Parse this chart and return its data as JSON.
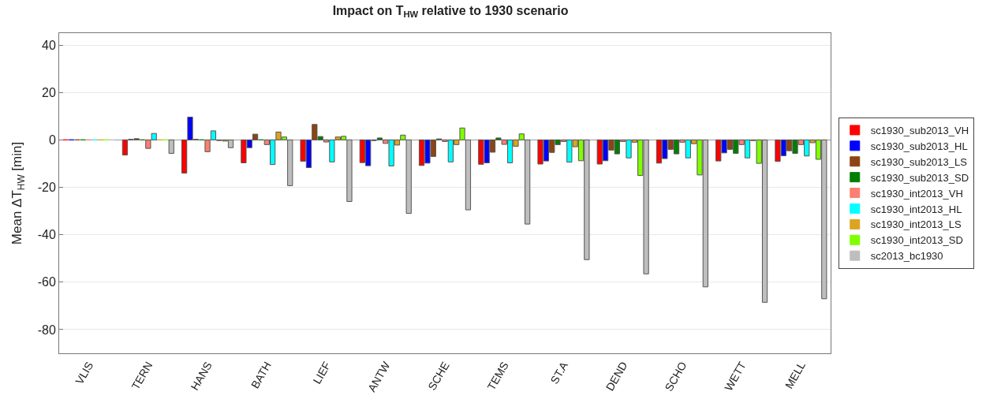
{
  "chart_data": {
    "type": "bar",
    "title": "Impact on T$_{HW}$ relative to 1930 scenario",
    "ylabel": "Mean ΔT$_{HW}$ [min]",
    "categories": [
      "VLIS",
      "TERN",
      "HANS",
      "BATH",
      "LIEF",
      "ANTW",
      "SCHE",
      "TEMS",
      "ST.A",
      "DEND",
      "SCHO",
      "WETT",
      "MELL"
    ],
    "series": [
      {
        "name": "sc1930_sub2013_VH",
        "color": "#ff0000",
        "values": [
          0,
          -6.4,
          -14,
          -9.7,
          -9,
          -9.6,
          -10.8,
          -10.3,
          -10.2,
          -10.2,
          -9.8,
          -8.9,
          -9.1
        ]
      },
      {
        "name": "sc1930_sub2013_HL",
        "color": "#0000ff",
        "values": [
          0,
          0.2,
          9.6,
          -3.3,
          -11.7,
          -10.9,
          -9.8,
          -9.7,
          -8.9,
          -8.8,
          -7.9,
          -5.5,
          -6.7
        ]
      },
      {
        "name": "sc1930_sub2013_LS",
        "color": "#8b4513",
        "values": [
          0,
          0.5,
          0.2,
          2.4,
          6.5,
          -0.3,
          -7,
          -5.2,
          -5.3,
          -4.3,
          -4,
          -4,
          -4.6
        ]
      },
      {
        "name": "sc1930_sub2013_SD",
        "color": "#007f00",
        "values": [
          0,
          0,
          0,
          0,
          1.4,
          0.8,
          0.4,
          0.8,
          -2,
          -5.9,
          -5.9,
          -5.7,
          -5.7
        ]
      },
      {
        "name": "sc1930_int2013_VH",
        "color": "#fa8072",
        "values": [
          0,
          -3.6,
          -5,
          -2,
          -0.9,
          -1.5,
          -0.7,
          -1.9,
          -0.7,
          -0.7,
          -1,
          -2,
          -2
        ]
      },
      {
        "name": "sc1930_int2013_HL",
        "color": "#00ffff",
        "values": [
          0,
          2.7,
          3.8,
          -10.4,
          -9.3,
          -11,
          -9.3,
          -9.7,
          -9.4,
          -7.6,
          -7.6,
          -7.6,
          -6.8
        ]
      },
      {
        "name": "sc1930_int2013_LS",
        "color": "#daa520",
        "values": [
          0,
          0,
          -0.3,
          3.3,
          1.2,
          -2.2,
          -2,
          -2.7,
          -2.9,
          -1,
          -1.6,
          -0.3,
          -1.2
        ]
      },
      {
        "name": "sc1930_int2013_SD",
        "color": "#7fff00",
        "values": [
          0,
          0,
          -0.5,
          1.2,
          1.5,
          2,
          5,
          2.5,
          -8.8,
          -15,
          -14.8,
          -9.9,
          -8.2
        ]
      },
      {
        "name": "sc2013_bc1930",
        "color": "#bebebe",
        "values": [
          0,
          -5.7,
          -3.3,
          -19.3,
          -26,
          -31,
          -29.5,
          -35.5,
          -50.5,
          -56.5,
          -62,
          -68.5,
          -67
        ]
      }
    ],
    "ylim": [
      -90,
      45
    ],
    "yticks": [
      -80,
      -60,
      -40,
      -20,
      0,
      20,
      40
    ],
    "grid": "y",
    "legend": "right"
  }
}
